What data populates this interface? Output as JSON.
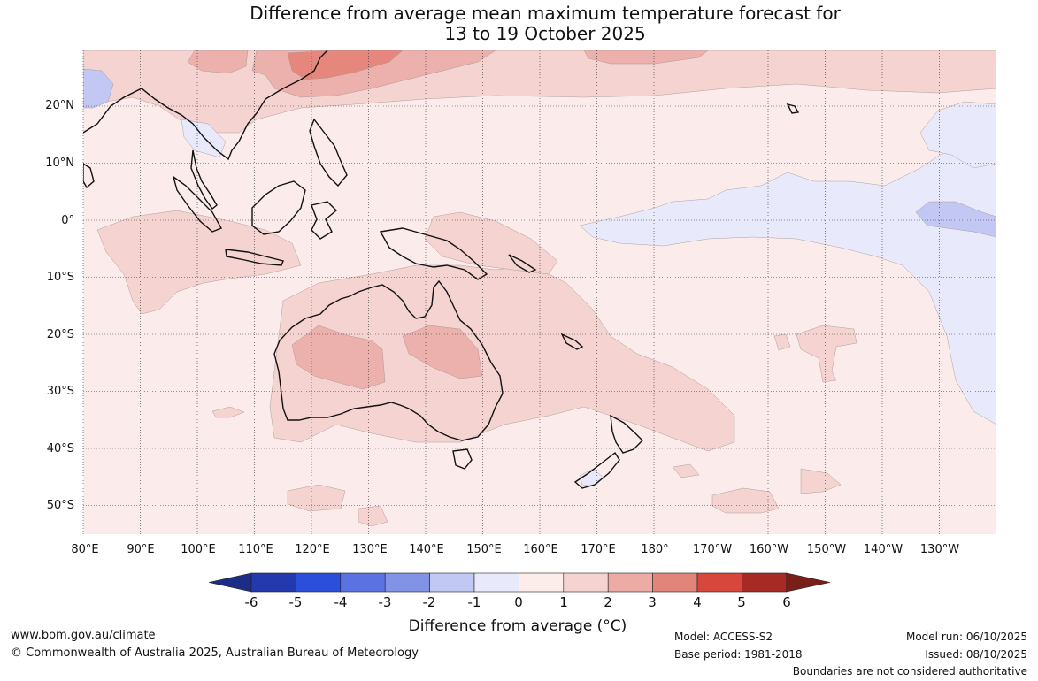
{
  "title": {
    "line1": "Difference from average mean maximum temperature forecast for",
    "line2": "13 to 19 October 2025"
  },
  "map": {
    "lat_labels": [
      "20°N",
      "10°N",
      "0°",
      "10°S",
      "20°S",
      "30°S",
      "40°S",
      "50°S"
    ],
    "lon_labels": [
      "80°E",
      "90°E",
      "100°E",
      "110°E",
      "120°E",
      "130°E",
      "140°E",
      "150°E",
      "160°E",
      "170°E",
      "180°",
      "170°W",
      "160°W",
      "150°W",
      "140°W",
      "130°W"
    ],
    "anomaly_colors": {
      "0_1": "#fbeceb",
      "1_2": "#f4d3d0",
      "2_3": "#ecb1ac",
      "3_4": "#e6877d",
      "-1_0": "#e8eafb",
      "-2_-1": "#c2c8f3"
    }
  },
  "colorbar": {
    "ticks": [
      "-6",
      "-5",
      "-4",
      "-3",
      "-2",
      "-1",
      "0",
      "1",
      "2",
      "3",
      "4",
      "5",
      "6"
    ],
    "colors": [
      "#1c2d88",
      "#2339ad",
      "#2c4fdb",
      "#5a72e2",
      "#8293e5",
      "#c1c8f3",
      "#e8eafb",
      "#fcecea",
      "#f4d3d0",
      "#ecaca5",
      "#e1857b",
      "#d8473b",
      "#a82a24",
      "#7a1e1a"
    ],
    "label": "Difference from average (°C)"
  },
  "footer": {
    "website": "www.bom.gov.au/climate",
    "copyright": "© Commonwealth of Australia 2025, Australian Bureau of Meteorology",
    "model": "Model: ACCESS-S2",
    "base_period": "Base period: 1981-2018",
    "model_run": "Model run: 06/10/2025",
    "issued": "Issued: 08/10/2025",
    "disclaimer": "Boundaries are not considered authoritative"
  }
}
